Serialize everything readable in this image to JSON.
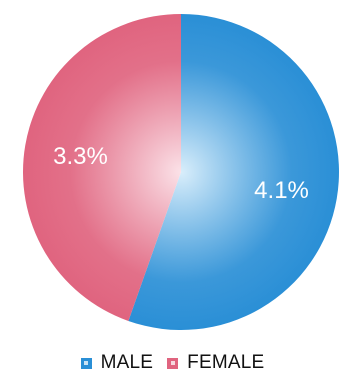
{
  "chart_data": {
    "type": "pie",
    "title": "",
    "slices": [
      {
        "label": "MALE",
        "value": 4.1,
        "display": "4.1%",
        "color": "#2a8fd6",
        "center_color": "#d9eefb"
      },
      {
        "label": "FEMALE",
        "value": 3.3,
        "display": "3.3%",
        "color": "#e0647f",
        "center_color": "#fbe2e8"
      }
    ],
    "legend_position": "bottom"
  },
  "legend": {
    "items": [
      {
        "label": "MALE",
        "color": "#2a8fd6"
      },
      {
        "label": "FEMALE",
        "color": "#e0647f"
      }
    ]
  }
}
